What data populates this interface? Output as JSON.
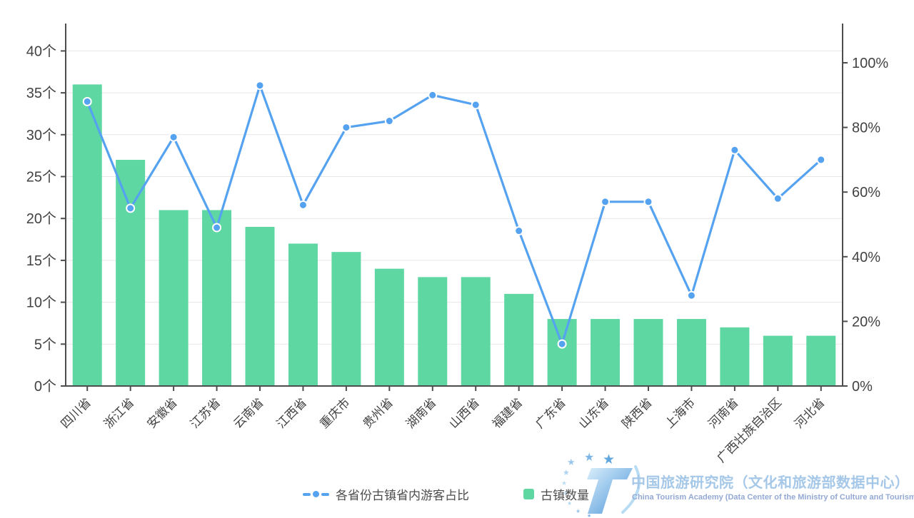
{
  "colors": {
    "bar": "#5ed7a3",
    "line": "#55a2f0",
    "dot_stroke": "#ffffff",
    "grid": "#e7e7e7",
    "axis": "#4d4d4d",
    "label": "#424242",
    "legend_text": "#4d4d4d",
    "logo_cn": "#a6c8e8",
    "logo_en": "#93a9d4",
    "logo_star": "#7fb6e5",
    "logo_swoosh": "#b8dcf3",
    "logo_grad_light": "#d9eefb",
    "logo_grad_dark": "#4a94d8"
  },
  "chart_data": {
    "type": "combo",
    "title": "",
    "grid": true,
    "legend_position": "bottom",
    "categories": [
      "四川省",
      "浙江省",
      "安徽省",
      "江苏省",
      "云南省",
      "江西省",
      "重庆市",
      "贵州省",
      "湖南省",
      "山西省",
      "福建省",
      "广东省",
      "山东省",
      "陕西省",
      "上海市",
      "河南省",
      "广西壮族自治区",
      "河北省"
    ],
    "series": [
      {
        "name": "古镇数量",
        "type": "bar",
        "axis": "left",
        "unit": "个",
        "color": "#5ed7a3",
        "values": [
          36,
          27,
          21,
          21,
          19,
          17,
          16,
          14,
          13,
          13,
          11,
          8,
          8,
          8,
          8,
          7,
          6,
          6
        ]
      },
      {
        "name": "各省份古镇省内游客占比",
        "type": "line",
        "axis": "right",
        "unit": "%",
        "color": "#55a2f0",
        "values": [
          88,
          55,
          77,
          49,
          93,
          56,
          80,
          82,
          90,
          87,
          48,
          13,
          57,
          57,
          28,
          73,
          58,
          70
        ]
      }
    ],
    "left_axis": {
      "unit": "个",
      "tick_values": [
        0,
        5,
        10,
        15,
        20,
        25,
        30,
        35,
        40
      ],
      "tick_labels": [
        "0个",
        "5个",
        "10个",
        "15个",
        "20个",
        "25个",
        "30个",
        "35个",
        "40个"
      ],
      "range": [
        0,
        43.3
      ]
    },
    "right_axis": {
      "unit": "%",
      "tick_values": [
        0,
        20,
        40,
        60,
        80,
        100
      ],
      "tick_labels": [
        "0%",
        "20%",
        "40%",
        "60%",
        "80%",
        "100%"
      ],
      "range": [
        0,
        112
      ]
    }
  },
  "legend": {
    "line_label": "各省份古镇省内游客占比",
    "bar_label": "古镇数量"
  },
  "branding": {
    "title_cn": "中国旅游研究院（文化和旅游部数据中心）",
    "title_en": "China Tourism Academy (Data Center of the Ministry of Culture and Tourism)",
    "star_glyph": "★",
    "logo_glyph": "T"
  }
}
